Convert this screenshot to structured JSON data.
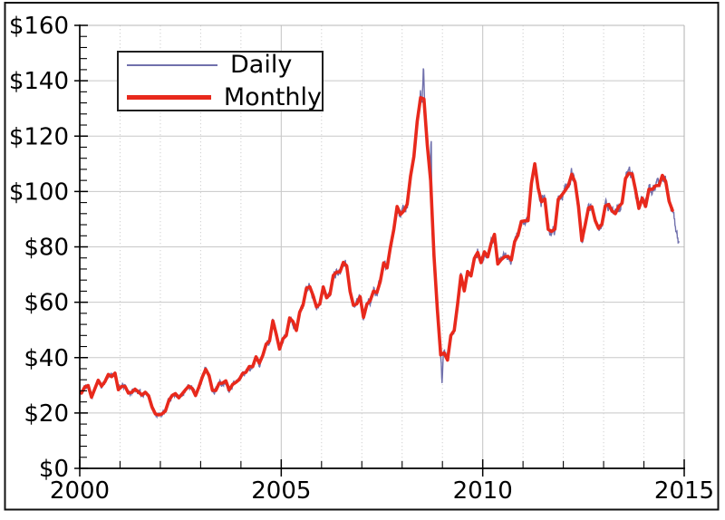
{
  "figure": {
    "background_color": "#ffffff",
    "border_color": "#111111"
  },
  "chart_data": {
    "type": "line",
    "title": "",
    "xlabel": "",
    "ylabel": "",
    "x_axis": {
      "min": 2000,
      "max": 2015,
      "major_tick_values": [
        2000,
        2005,
        2010,
        2015
      ],
      "major_tick_labels": [
        "2000",
        "2005",
        "2010",
        "2015"
      ],
      "minor_tick_interval_years": 1
    },
    "y_axis": {
      "min": 0,
      "max": 160,
      "major_tick_interval": 20,
      "minor_tick_interval": 4,
      "major_tick_labels": [
        "$0",
        "$20",
        "$40",
        "$60",
        "$80",
        "$100",
        "$120",
        "$140",
        "$160"
      ]
    },
    "style": {
      "grid_major_color": "#c8c8c8",
      "grid_minor_color": "#cfcfcf",
      "spine_primary_color": "#000000",
      "spine_secondary_color": "#b7b7b7",
      "tick_label_color": "#000000",
      "legend_border_color": "#1f1f1f"
    },
    "legend": {
      "position": "upper-left"
    },
    "monthly": {
      "name": "Monthly",
      "color": "#e8291c",
      "line_width": 3.6,
      "start_year": 2000,
      "start_month": 1,
      "values": [
        27.2,
        29.4,
        29.9,
        25.7,
        28.8,
        31.8,
        29.7,
        31.3,
        33.9,
        33.1,
        34.4,
        28.4,
        29.6,
        29.6,
        27.2,
        27.5,
        28.6,
        27.6,
        26.5,
        27.5,
        26.2,
        22.2,
        19.7,
        19.3,
        19.7,
        20.7,
        24.4,
        26.3,
        27.0,
        25.5,
        26.9,
        28.4,
        29.7,
        28.9,
        26.3,
        29.4,
        33.0,
        35.8,
        33.5,
        28.2,
        28.1,
        30.7,
        30.8,
        31.6,
        28.3,
        30.3,
        31.1,
        32.1,
        34.3,
        34.7,
        36.8,
        36.7,
        40.3,
        38.0,
        40.8,
        44.9,
        46.0,
        53.3,
        48.5,
        43.1,
        46.8,
        48.0,
        54.3,
        53.0,
        49.8,
        56.4,
        59.0,
        65.0,
        65.6,
        62.4,
        58.3,
        59.4,
        65.5,
        61.6,
        62.9,
        69.7,
        70.9,
        71.0,
        74.4,
        73.1,
        63.9,
        58.9,
        59.4,
        62.0,
        54.5,
        59.3,
        60.6,
        64.0,
        63.5,
        67.5,
        74.2,
        72.4,
        79.9,
        86.2,
        94.6,
        91.7,
        93.0,
        95.4,
        105.5,
        112.6,
        125.4,
        133.9,
        133.4,
        116.7,
        103.9,
        76.7,
        57.4,
        41.0,
        41.7,
        39.1,
        48.0,
        49.8,
        59.2,
        69.7,
        64.1,
        71.1,
        69.5,
        75.8,
        78.0,
        74.3,
        78.2,
        76.4,
        81.2,
        84.5,
        73.8,
        75.4,
        76.4,
        76.6,
        75.3,
        81.9,
        84.3,
        89.2,
        89.4,
        89.5,
        102.9,
        110.0,
        101.3,
        96.3,
        97.3,
        86.3,
        85.6,
        86.4,
        97.2,
        98.6,
        100.3,
        102.2,
        106.2,
        103.3,
        94.7,
        82.3,
        87.9,
        94.1,
        94.5,
        89.5,
        86.7,
        88.2,
        94.8,
        95.3,
        93.0,
        92.0,
        94.5,
        95.8,
        104.7,
        106.6,
        106.3,
        100.5,
        93.9,
        97.6,
        94.6,
        100.8,
        100.8,
        102.1,
        102.2,
        105.8,
        103.6,
        96.5,
        93.2
      ]
    },
    "daily": {
      "name": "Daily",
      "color": "#7070ac",
      "line_width": 1.4,
      "start": 2000.0,
      "end": 2014.87,
      "end_value": 81.5,
      "peak": {
        "time": 2008.53,
        "value": 145.3
      },
      "trough": {
        "time": 2008.99,
        "value": 30.3
      },
      "tail_anchors": [
        [
          2014.75,
          90.5
        ],
        [
          2014.8,
          86.0
        ],
        [
          2014.87,
          81.5
        ]
      ],
      "spikes": [
        {
          "time": 2008.53,
          "delta": 10.5,
          "sigma": 0.013
        },
        {
          "time": 2008.72,
          "delta": 20.0,
          "sigma": 0.009
        },
        {
          "time": 2008.99,
          "delta": -9.5,
          "sigma": 0.014
        }
      ],
      "noise": {
        "seed": 11,
        "base_amp": 1.0,
        "amp_per_dollar": 0.022,
        "samples": 1500
      }
    }
  }
}
